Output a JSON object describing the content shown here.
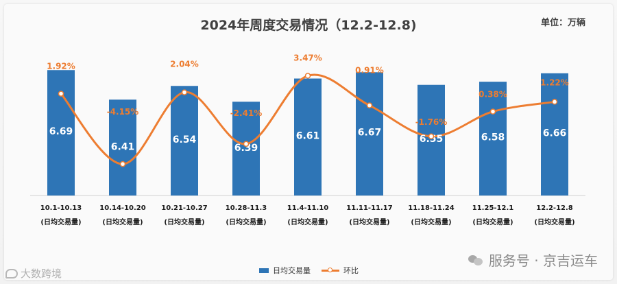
{
  "header": {
    "title": "2024年周度交易情况（12.2-12.8)",
    "unit": "单位：万辆"
  },
  "legend": {
    "bar_label": "日均交易量",
    "line_label": "环比"
  },
  "watermarks": {
    "right": "服务号 · 京吉运车",
    "left": "大数跨境"
  },
  "colors": {
    "bar": "#2e75b6",
    "line": "#ed7d31",
    "bar_label": "#ffffff",
    "pct_label": "#ed7d31"
  },
  "chart_data": {
    "type": "bar",
    "title": "2024年周度交易情况（12.2-12.8)",
    "categories": [
      "10.1-10.13",
      "10.14-10.20",
      "10.21-10.27",
      "10.28-11.3",
      "11.4-11.10",
      "11.11-11.17",
      "11.18-11.24",
      "11.25-12.1",
      "12.2-12.8"
    ],
    "category_sublabel": "(日均交易量)",
    "ylim": [
      5.5,
      6.75
    ],
    "series": [
      {
        "name": "日均交易量",
        "type": "bar",
        "values": [
          6.69,
          6.41,
          6.54,
          6.39,
          6.61,
          6.67,
          6.55,
          6.58,
          6.66
        ],
        "labels": [
          "6.69",
          "6.41",
          "6.54",
          "6.39",
          "6.61",
          "6.67",
          "6.55",
          "6.58",
          "6.66"
        ]
      },
      {
        "name": "环比",
        "type": "line",
        "smooth": true,
        "values": [
          1.92,
          -4.15,
          2.04,
          -2.41,
          3.47,
          0.91,
          -1.76,
          0.38,
          1.22
        ],
        "labels": [
          "1.92%",
          "-4.15%",
          "2.04%",
          "-2.41%",
          "3.47%",
          "0.91%",
          "-1.76%",
          "0.38%",
          "1.22%"
        ],
        "ylim": [
          -5.5,
          4.5
        ]
      }
    ],
    "grid": false,
    "legend_position": "bottom"
  }
}
